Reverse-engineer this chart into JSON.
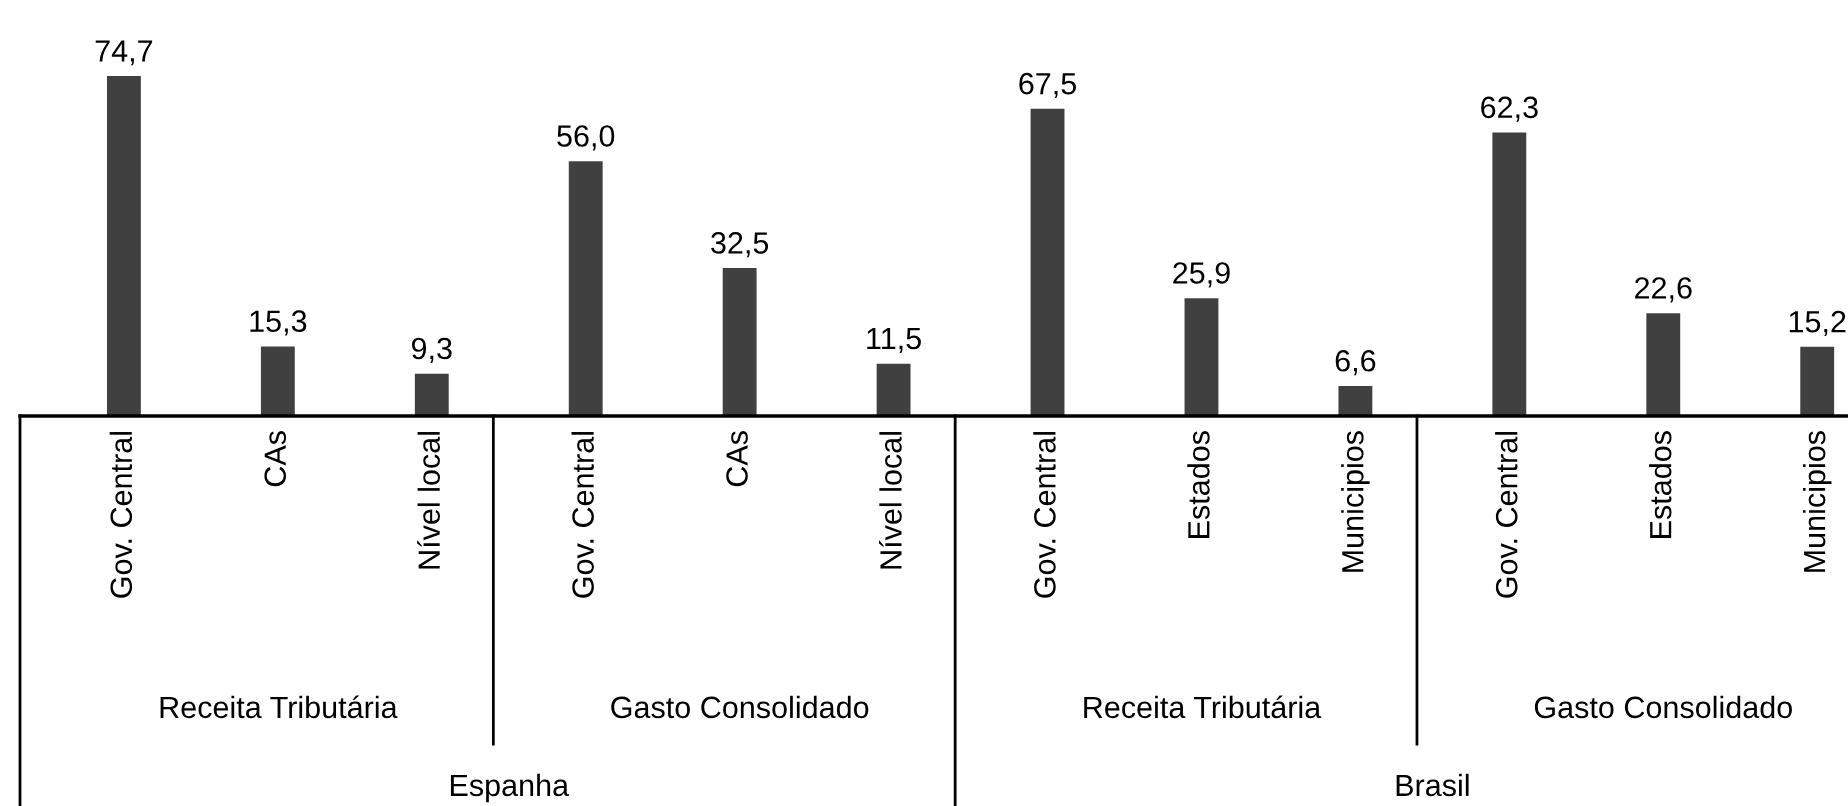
{
  "chart_data": {
    "type": "bar",
    "categories": [
      "Gov. Central",
      "CAs",
      "Nível local",
      "Gov. Central",
      "CAs",
      "Nível local",
      "Gov. Central",
      "Estados",
      "Municipios",
      "Gov. Central",
      "Estados",
      "Municipios"
    ],
    "values": [
      74.7,
      15.3,
      9.3,
      56.0,
      32.5,
      11.5,
      67.5,
      25.9,
      6.6,
      62.3,
      22.6,
      15.2
    ],
    "value_labels": [
      "74,7",
      "15,3",
      "9,3",
      "56,0",
      "32,5",
      "11,5",
      "67,5",
      "25,9",
      "6,6",
      "62,3",
      "22,6",
      "15,2"
    ],
    "color": "#404040",
    "annotations": [
      "Receita Tributária",
      "Gasto Consolidado",
      "Receita Tributária",
      "Gasto Consolidado",
      "Espanha",
      "Brasil"
    ]
  }
}
